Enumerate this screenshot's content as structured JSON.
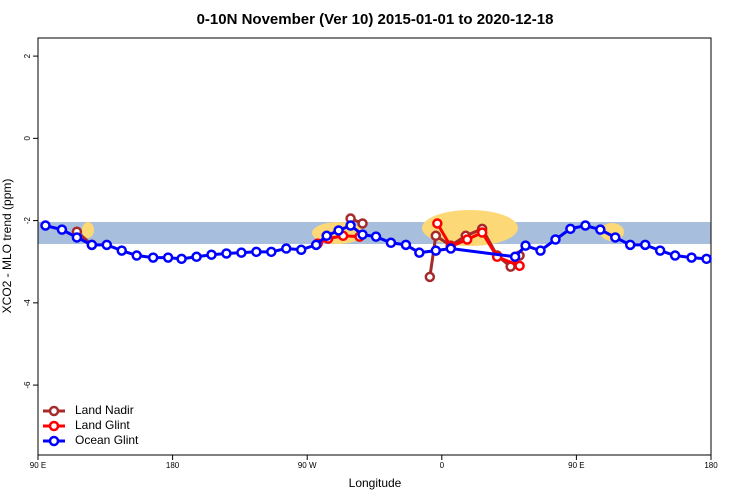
{
  "chart_data": {
    "type": "line",
    "title": "0-10N November (Ver 10)   2015-01-01 to 2020-12-18",
    "x_label": "Longitude",
    "y_label": "XCO2 - MLO trend (ppm)",
    "xlim": [
      90,
      540
    ],
    "xticks": [
      {
        "value": 90,
        "label": "90 E"
      },
      180,
      {
        "value": 270,
        "label": "90 W"
      },
      {
        "value": 360,
        "label": "0"
      },
      {
        "value": 450,
        "label": "90 E"
      },
      180
    ],
    "ylim": [
      -7.7,
      2.44
    ],
    "yticks": [
      -6,
      -4,
      -2,
      0,
      2
    ],
    "legend": "bottom-left",
    "series": [
      {
        "name": "Land Nadir",
        "color": "#a52a2a",
        "x": [
          116,
          126,
          null,
          299,
          307,
          null,
          352,
          356,
          366,
          376,
          387,
          397,
          406,
          412
        ],
        "values": [
          -2.27,
          -2.59,
          null,
          -1.95,
          -2.07,
          null,
          -3.37,
          -2.37,
          -2.61,
          -2.37,
          -2.2,
          -2.85,
          -3.12,
          -2.85
        ]
      },
      {
        "name": "Land Glint",
        "color": "#ff0000",
        "x": [
          277,
          284,
          294,
          305,
          null,
          357,
          366,
          377,
          387,
          397,
          412
        ],
        "values": [
          -2.56,
          -2.44,
          -2.37,
          -2.39,
          null,
          -2.07,
          -2.63,
          -2.46,
          -2.29,
          -2.88,
          -3.1
        ]
      },
      {
        "name": "Ocean Glint",
        "color": "#0000ff",
        "x": [
          95,
          106,
          116,
          126,
          136,
          146,
          156,
          167,
          177,
          186,
          196,
          206,
          216,
          226,
          236,
          246,
          256,
          266,
          276,
          283,
          291,
          299,
          307,
          316,
          326,
          336,
          345,
          356,
          366,
          409,
          416,
          426,
          436,
          446,
          456,
          466,
          476,
          486,
          496,
          506,
          516,
          527,
          537
        ],
        "values": [
          -2.12,
          -2.22,
          -2.41,
          -2.59,
          -2.59,
          -2.73,
          -2.85,
          -2.9,
          -2.9,
          -2.93,
          -2.88,
          -2.83,
          -2.8,
          -2.78,
          -2.76,
          -2.76,
          -2.68,
          -2.71,
          -2.59,
          -2.37,
          -2.24,
          -2.12,
          -2.34,
          -2.39,
          -2.54,
          -2.59,
          -2.78,
          -2.73,
          -2.68,
          -2.88,
          -2.61,
          -2.73,
          -2.46,
          -2.2,
          -2.12,
          -2.22,
          -2.41,
          -2.59,
          -2.59,
          -2.73,
          -2.85,
          -2.9,
          -2.93
        ]
      }
    ]
  }
}
